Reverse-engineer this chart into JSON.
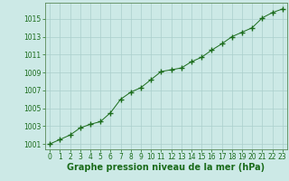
{
  "x": [
    0,
    1,
    2,
    3,
    4,
    5,
    6,
    7,
    8,
    9,
    10,
    11,
    12,
    13,
    14,
    15,
    16,
    17,
    18,
    19,
    20,
    21,
    22,
    23
  ],
  "y": [
    1001.0,
    1001.5,
    1002.0,
    1002.8,
    1003.2,
    1003.5,
    1004.5,
    1006.0,
    1006.8,
    1007.3,
    1008.2,
    1009.1,
    1009.3,
    1009.5,
    1010.2,
    1010.7,
    1011.5,
    1012.2,
    1013.0,
    1013.5,
    1014.0,
    1015.1,
    1015.7,
    1016.1
  ],
  "line_color": "#1a6b1a",
  "marker": "+",
  "marker_size": 4,
  "marker_linewidth": 1.0,
  "linewidth": 0.7,
  "xlabel": "Graphe pression niveau de la mer (hPa)",
  "xlabel_fontsize": 7,
  "ylabel_ticks": [
    1001,
    1003,
    1005,
    1007,
    1009,
    1011,
    1013,
    1015
  ],
  "ylim": [
    1000.4,
    1016.8
  ],
  "xlim": [
    -0.5,
    23.5
  ],
  "xticks": [
    0,
    1,
    2,
    3,
    4,
    5,
    6,
    7,
    8,
    9,
    10,
    11,
    12,
    13,
    14,
    15,
    16,
    17,
    18,
    19,
    20,
    21,
    22,
    23
  ],
  "background_color": "#cce9e6",
  "grid_color": "#aacfcc",
  "tick_color": "#1a6b1a",
  "tick_fontsize": 5.5,
  "spine_color": "#5a8a5a"
}
